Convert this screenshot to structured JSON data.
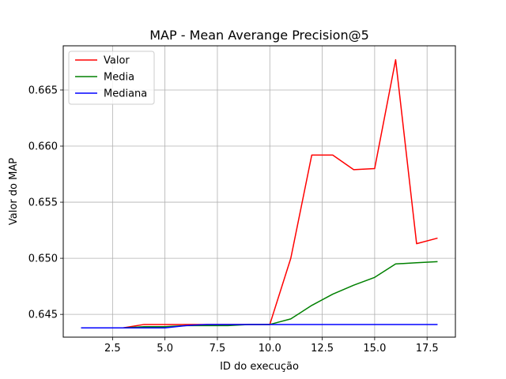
{
  "chart_data": {
    "type": "line",
    "title": "MAP - Mean Averange Precision@5",
    "xlabel": "ID do execução",
    "ylabel": "Valor do MAP",
    "xlim": [
      0.15,
      18.85
    ],
    "ylim": [
      0.64297,
      0.66894
    ],
    "xticks": [
      2.5,
      5.0,
      7.5,
      10.0,
      12.5,
      15.0,
      17.5
    ],
    "xtick_labels": [
      "2.5",
      "5.0",
      "7.5",
      "10.0",
      "12.5",
      "15.0",
      "17.5"
    ],
    "yticks": [
      0.645,
      0.65,
      0.655,
      0.66,
      0.665
    ],
    "ytick_labels": [
      "0.645",
      "0.650",
      "0.655",
      "0.660",
      "0.665"
    ],
    "grid": true,
    "legend_position": "top-left",
    "x": [
      1,
      2,
      3,
      4,
      5,
      6,
      7,
      8,
      9,
      10,
      11,
      12,
      13,
      14,
      15,
      16,
      17,
      18
    ],
    "series": [
      {
        "name": "Valor",
        "color": "#ff0000",
        "values": [
          0.6438,
          0.6438,
          0.6438,
          0.6441,
          0.6441,
          0.6441,
          0.6441,
          0.6441,
          0.6441,
          0.6441,
          0.65,
          0.6592,
          0.6592,
          0.6579,
          0.658,
          0.6677,
          0.6513,
          0.6518
        ]
      },
      {
        "name": "Media",
        "color": "#008000",
        "values": [
          0.6438,
          0.6438,
          0.6438,
          0.6439,
          0.6439,
          0.644,
          0.644,
          0.644,
          0.6441,
          0.6441,
          0.6446,
          0.6458,
          0.6468,
          0.6476,
          0.6483,
          0.6495,
          0.6496,
          0.6497
        ]
      },
      {
        "name": "Mediana",
        "color": "#0000ff",
        "values": [
          0.6438,
          0.6438,
          0.6438,
          0.6438,
          0.6438,
          0.644,
          0.6441,
          0.6441,
          0.6441,
          0.6441,
          0.6441,
          0.6441,
          0.6441,
          0.6441,
          0.6441,
          0.6441,
          0.6441,
          0.6441
        ]
      }
    ]
  }
}
